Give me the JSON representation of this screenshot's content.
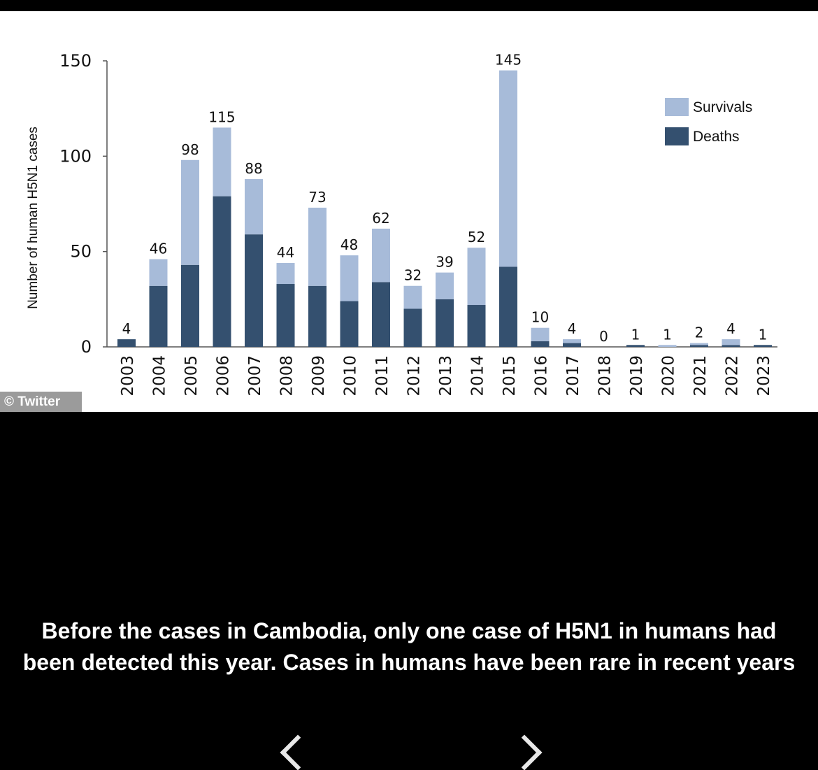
{
  "chart_data": {
    "type": "bar",
    "stacked": true,
    "title": "",
    "xlabel": "",
    "ylabel": "Number of human H5N1 cases",
    "ylim": [
      0,
      150
    ],
    "yticks": [
      "0",
      "50",
      "100",
      "150"
    ],
    "categories": [
      "2003",
      "2004",
      "2005",
      "2006",
      "2007",
      "2008",
      "2009",
      "2010",
      "2011",
      "2012",
      "2013",
      "2014",
      "2015",
      "2016",
      "2017",
      "2018",
      "2019",
      "2020",
      "2021",
      "2022",
      "2023"
    ],
    "totals": [
      4,
      46,
      98,
      115,
      88,
      44,
      73,
      48,
      62,
      32,
      39,
      52,
      145,
      10,
      4,
      0,
      1,
      1,
      2,
      4,
      1
    ],
    "total_labels": [
      "4",
      "46",
      "98",
      "115",
      "88",
      "44",
      "73",
      "48",
      "62",
      "32",
      "39",
      "52",
      "145",
      "10",
      "4",
      "0",
      "1",
      "1",
      "2",
      "4",
      "1"
    ],
    "series": [
      {
        "name": "Deaths",
        "color": "#34506f",
        "values": [
          4,
          32,
          43,
          79,
          59,
          33,
          32,
          24,
          34,
          20,
          25,
          22,
          42,
          3,
          2,
          0,
          1,
          0,
          1,
          1,
          1
        ]
      },
      {
        "name": "Survivals",
        "color": "#a7bbd9",
        "values": [
          0,
          14,
          55,
          36,
          29,
          11,
          41,
          24,
          28,
          12,
          14,
          30,
          103,
          7,
          2,
          0,
          0,
          1,
          1,
          3,
          0
        ]
      }
    ],
    "legend": {
      "position": "top-right",
      "entries": [
        "Survivals",
        "Deaths"
      ]
    }
  },
  "credit": "© Twitter",
  "caption": "Before the cases in Cambodia, only one case of H5N1 in humans had been detected this year. Cases in humans have been rare in recent years"
}
